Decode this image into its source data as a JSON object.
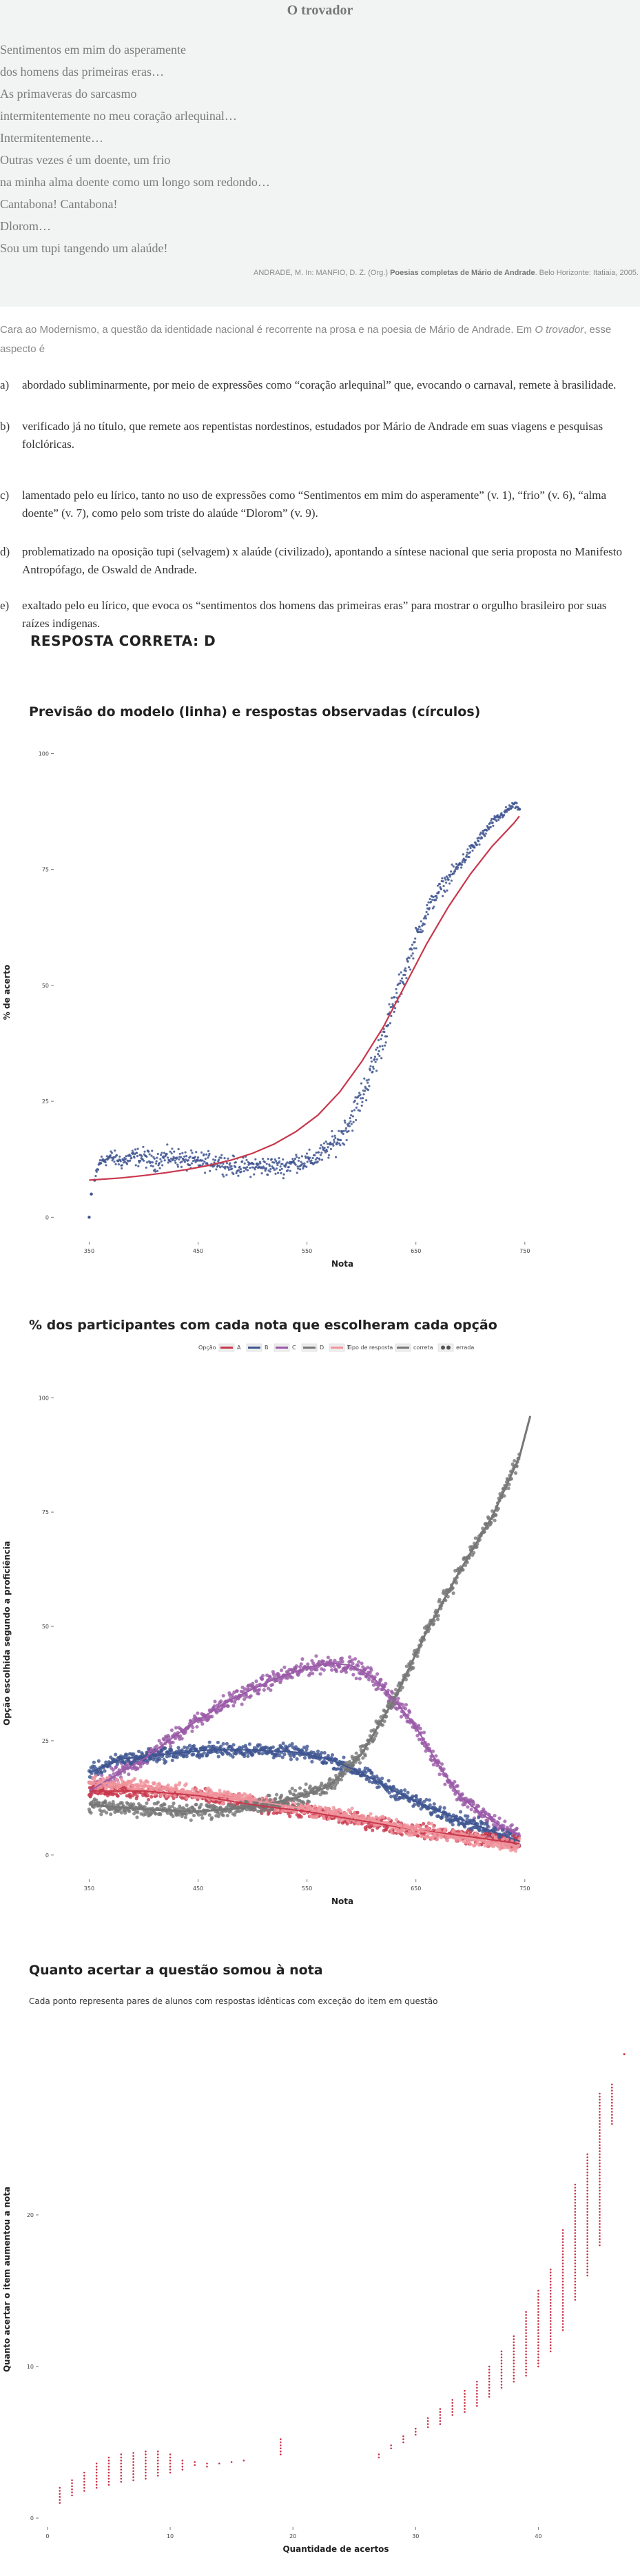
{
  "poem": {
    "title": "O trovador",
    "lines": [
      "Sentimentos em mim do asperamente",
      "dos homens das primeiras eras…",
      "As primaveras do sarcasmo",
      "intermitentemente no meu coração arlequinal…",
      "Intermitentemente…",
      "Outras vezes é um doente, um frio",
      "na minha alma doente como um longo som redondo…",
      "Cantabona! Cantabona!",
      "Dlorom…",
      "Sou um tupi tangendo um alaúde!"
    ],
    "citation_pre": "ANDRADE, M. In: MANFIO, D. Z. (Org.)",
    "citation_bold": "Poesias completas de Mário de Andrade",
    "citation_post": ". Belo Horizonte: Itatiaia, 2005."
  },
  "question": {
    "intro_pre": "Cara ao Modernismo, a questão da identidade nacional é recorrente na prosa e na poesia de Mário de Andrade. Em ",
    "intro_em": "O trovador",
    "intro_post": ", esse aspecto é",
    "options": [
      {
        "letter": "a)",
        "text": "abordado subliminarmente, por meio de expressões como “coração arlequinal” que, evocando o carnaval, remete à brasilidade."
      },
      {
        "letter": "b)",
        "text": "verificado já no título, que remete aos repentistas nordestinos, estudados por Mário de Andrade em suas viagens e pesquisas folclóricas."
      },
      {
        "letter": "c)",
        "text": "lamentado pelo eu lírico, tanto no uso de expressões como “Sentimentos em mim do asperamente” (v. 1), “frio” (v. 6), “alma doente” (v. 7), como pelo som triste do alaúde “Dlorom” (v. 9)."
      },
      {
        "letter": "d)",
        "text": "problematizado na oposição tupi (selvagem) x alaúde (civilizado), apontando a síntese nacional que seria proposta no Manifesto Antropófago, de Oswald de Andrade."
      },
      {
        "letter": "e)",
        "text": "exaltado pelo eu lírico, que evoca os “sentimentos dos homens das primeiras eras” para mostrar o orgulho brasileiro por suas raízes indígenas."
      }
    ],
    "answer": "RESPOSTA CORRETA: D"
  },
  "chart_data": [
    {
      "type": "scatter",
      "title": "Previsão do modelo (linha) e respostas observadas (círculos)",
      "xlabel": "Nota",
      "ylabel": "% de acerto",
      "xlim": [
        320,
        845
      ],
      "ylim": [
        -5,
        102
      ],
      "x_ticks": [
        {
          "v": 350,
          "label": "350"
        },
        {
          "v": 450,
          "label": "450"
        },
        {
          "v": 550,
          "label": "550"
        },
        {
          "v": 650,
          "label": "650"
        },
        {
          "v": 750,
          "label": "750"
        }
      ],
      "y_ticks": [
        {
          "v": 0,
          "label": "0"
        },
        {
          "v": 25,
          "label": "25"
        },
        {
          "v": 50,
          "label": "50"
        },
        {
          "v": 75,
          "label": "75"
        },
        {
          "v": 100,
          "label": "100"
        }
      ],
      "colors": {
        "points": "#3f5591",
        "line": "#c8374b"
      },
      "observed": [
        [
          350,
          0
        ],
        [
          352,
          5
        ],
        [
          355,
          8
        ],
        [
          360,
          12
        ],
        [
          370,
          13
        ],
        [
          380,
          12
        ],
        [
          390,
          13
        ],
        [
          400,
          13
        ],
        [
          410,
          12
        ],
        [
          420,
          13
        ],
        [
          430,
          13
        ],
        [
          440,
          12
        ],
        [
          450,
          12
        ],
        [
          460,
          12
        ],
        [
          470,
          12
        ],
        [
          480,
          11
        ],
        [
          490,
          11
        ],
        [
          500,
          11
        ],
        [
          510,
          11
        ],
        [
          520,
          11
        ],
        [
          530,
          11
        ],
        [
          540,
          12
        ],
        [
          550,
          12
        ],
        [
          560,
          13
        ],
        [
          570,
          15
        ],
        [
          580,
          17
        ],
        [
          590,
          21
        ],
        [
          600,
          26
        ],
        [
          610,
          32
        ],
        [
          620,
          39
        ],
        [
          630,
          46
        ],
        [
          640,
          53
        ],
        [
          650,
          60
        ],
        [
          660,
          66
        ],
        [
          670,
          70
        ],
        [
          680,
          73
        ],
        [
          690,
          76
        ],
        [
          700,
          79
        ],
        [
          710,
          82
        ],
        [
          720,
          85
        ],
        [
          730,
          87
        ],
        [
          740,
          89
        ],
        [
          745,
          88
        ]
      ],
      "observed_spread": [
        [
          350,
          1
        ],
        [
          360,
          2
        ],
        [
          400,
          3
        ],
        [
          450,
          3
        ],
        [
          500,
          3
        ],
        [
          540,
          3
        ],
        [
          560,
          3
        ],
        [
          580,
          4
        ],
        [
          600,
          5
        ],
        [
          620,
          5
        ],
        [
          640,
          4
        ],
        [
          660,
          3
        ],
        [
          700,
          2
        ],
        [
          745,
          1
        ]
      ],
      "model": [
        [
          350,
          8
        ],
        [
          380,
          8.5
        ],
        [
          400,
          9
        ],
        [
          420,
          9.6
        ],
        [
          440,
          10.3
        ],
        [
          460,
          11.2
        ],
        [
          480,
          12.3
        ],
        [
          500,
          13.8
        ],
        [
          520,
          15.8
        ],
        [
          540,
          18.5
        ],
        [
          560,
          22
        ],
        [
          580,
          27
        ],
        [
          600,
          33.5
        ],
        [
          620,
          41
        ],
        [
          640,
          50
        ],
        [
          660,
          59
        ],
        [
          680,
          67
        ],
        [
          700,
          74
        ],
        [
          720,
          80
        ],
        [
          740,
          85
        ],
        [
          745,
          86.5
        ]
      ]
    },
    {
      "type": "scatter",
      "title": "% dos participantes com cada nota que escolheram cada opção",
      "xlabel": "Nota",
      "ylabel": "Opção escolhida segundo a proficiência",
      "xlim": [
        320,
        845
      ],
      "ylim": [
        -5,
        102
      ],
      "x_ticks": [
        {
          "v": 350,
          "label": "350"
        },
        {
          "v": 450,
          "label": "450"
        },
        {
          "v": 550,
          "label": "550"
        },
        {
          "v": 650,
          "label": "650"
        },
        {
          "v": 750,
          "label": "750"
        }
      ],
      "y_ticks": [
        {
          "v": 0,
          "label": "0"
        },
        {
          "v": 25,
          "label": "25"
        },
        {
          "v": 50,
          "label": "50"
        },
        {
          "v": 75,
          "label": "75"
        },
        {
          "v": 100,
          "label": "100"
        }
      ],
      "legend_option_title": "Opção",
      "legend_type_title": "Tipo de resposta",
      "legend_types": [
        {
          "label": "correta",
          "color": "#777777"
        },
        {
          "label": "errada",
          "color": "#555555"
        }
      ],
      "series": [
        {
          "name": "A",
          "color": "#c8374b",
          "spread": 2.2,
          "values": [
            [
              350,
              14
            ],
            [
              400,
              14
            ],
            [
              450,
              13
            ],
            [
              500,
              11
            ],
            [
              550,
              9.5
            ],
            [
              600,
              7.5
            ],
            [
              650,
              5.5
            ],
            [
              700,
              4
            ],
            [
              745,
              2.5
            ]
          ]
        },
        {
          "name": "B",
          "color": "#3f5591",
          "spread": 2.2,
          "values": [
            [
              350,
              18
            ],
            [
              380,
              21
            ],
            [
              420,
              22
            ],
            [
              460,
              23
            ],
            [
              500,
              23
            ],
            [
              540,
              22.5
            ],
            [
              570,
              21
            ],
            [
              600,
              18
            ],
            [
              630,
              14
            ],
            [
              660,
              10.5
            ],
            [
              700,
              7
            ],
            [
              745,
              3
            ]
          ]
        },
        {
          "name": "C",
          "color": "#9a5aa8",
          "spread": 2.6,
          "values": [
            [
              350,
              14
            ],
            [
              400,
              21
            ],
            [
              440,
              28
            ],
            [
              480,
              34
            ],
            [
              520,
              38.5
            ],
            [
              550,
              41
            ],
            [
              570,
              42
            ],
            [
              590,
              41.5
            ],
            [
              610,
              39
            ],
            [
              630,
              34
            ],
            [
              650,
              28
            ],
            [
              670,
              20
            ],
            [
              690,
              13
            ],
            [
              710,
              9
            ],
            [
              730,
              6
            ],
            [
              745,
              4.5
            ]
          ]
        },
        {
          "name": "D",
          "color": "#777777",
          "spread": 2.5,
          "values": [
            [
              350,
              11
            ],
            [
              400,
              10
            ],
            [
              450,
              9.5
            ],
            [
              500,
              10.5
            ],
            [
              540,
              12.5
            ],
            [
              570,
              15
            ],
            [
              600,
              22
            ],
            [
              630,
              34
            ],
            [
              660,
              49
            ],
            [
              690,
              62
            ],
            [
              720,
              74
            ],
            [
              745,
              87
            ]
          ]
        },
        {
          "name": "E",
          "color": "#f0949c",
          "spread": 2.2,
          "values": [
            [
              350,
              16
            ],
            [
              400,
              15
            ],
            [
              450,
              13.5
            ],
            [
              500,
              12
            ],
            [
              550,
              10
            ],
            [
              600,
              8
            ],
            [
              650,
              5.5
            ],
            [
              700,
              3.5
            ],
            [
              745,
              2
            ]
          ]
        }
      ],
      "d_trend_end": [
        [
          745,
          87
        ],
        [
          755,
          96
        ]
      ]
    },
    {
      "type": "scatter",
      "title": "Quanto acertar a questão somou à nota",
      "subtitle": "Cada ponto representa pares de alunos com respostas idênticas com exceção do item em questão",
      "xlabel": "Quantidade de acertos",
      "ylabel": "Quanto acertar o item aumentou a nota",
      "xlim": [
        -0.5,
        47.5
      ],
      "ylim": [
        -0.5,
        32
      ],
      "x_ticks": [
        {
          "v": 0,
          "label": "0"
        },
        {
          "v": 10,
          "label": "10"
        },
        {
          "v": 20,
          "label": "20"
        },
        {
          "v": 30,
          "label": "30"
        },
        {
          "v": 40,
          "label": "40"
        }
      ],
      "y_ticks": [
        {
          "v": 0,
          "label": "0"
        },
        {
          "v": 10,
          "label": "10"
        },
        {
          "v": 20,
          "label": "20"
        }
      ],
      "color": "#c8374b",
      "columns": [
        [
          1,
          1,
          2
        ],
        [
          2,
          1.5,
          2.5
        ],
        [
          3,
          1.8,
          3
        ],
        [
          4,
          2,
          3.6
        ],
        [
          5,
          2.2,
          4
        ],
        [
          6,
          2.4,
          4.3
        ],
        [
          7,
          2.5,
          4.4
        ],
        [
          8,
          2.6,
          4.5
        ],
        [
          9,
          2.8,
          4.4
        ],
        [
          10,
          3,
          4.2
        ],
        [
          11,
          3.2,
          3.8
        ],
        [
          12,
          3.5,
          3.8
        ],
        [
          13,
          3.4,
          3.6
        ],
        [
          14,
          3.6,
          3.6
        ],
        [
          15,
          3.7,
          3.7
        ],
        [
          16,
          3.8,
          3.8
        ],
        [
          19,
          4.2,
          5.2
        ],
        [
          27,
          4,
          4.2
        ],
        [
          28,
          4.6,
          4.8
        ],
        [
          29,
          5,
          5.4
        ],
        [
          30,
          5.5,
          6
        ],
        [
          31,
          6,
          6.6
        ],
        [
          32,
          6.2,
          7.2
        ],
        [
          33,
          6.8,
          7.8
        ],
        [
          34,
          7,
          8.4
        ],
        [
          35,
          7.4,
          9
        ],
        [
          36,
          8,
          10
        ],
        [
          37,
          8.6,
          11
        ],
        [
          38,
          9,
          12
        ],
        [
          39,
          9.4,
          13.6
        ],
        [
          40,
          10,
          15
        ],
        [
          41,
          11,
          16.5
        ],
        [
          42,
          12.4,
          19
        ],
        [
          43,
          14.4,
          22
        ],
        [
          44,
          16,
          24
        ],
        [
          45,
          18,
          28
        ],
        [
          46,
          26,
          28.6
        ]
      ],
      "outliers": [
        [
          47,
          30.6
        ]
      ]
    }
  ]
}
